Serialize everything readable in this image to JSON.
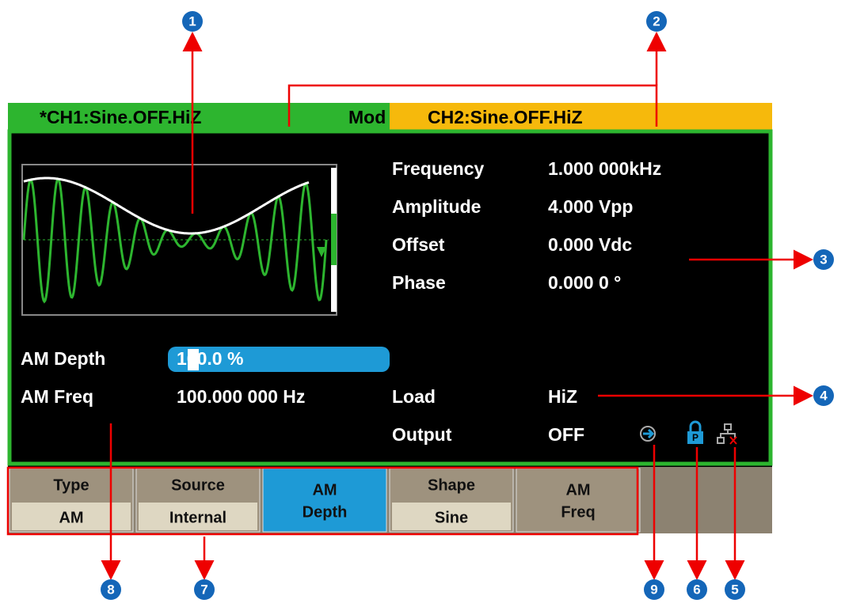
{
  "tabs": {
    "ch1": "*CH1:Sine.OFF.HiZ",
    "mod": "Mod",
    "ch2": "CH2:Sine.OFF.HiZ"
  },
  "params": [
    {
      "label": "Frequency",
      "value": "1.000 000kHz"
    },
    {
      "label": "Amplitude",
      "value": "4.000 Vpp"
    },
    {
      "label": "Offset",
      "value": "0.000 Vdc"
    },
    {
      "label": "Phase",
      "value": "0.000 0 °"
    }
  ],
  "modulation": [
    {
      "label": "AM Depth",
      "value": "100.0 %"
    },
    {
      "label": "AM Freq",
      "value": "100.000 000 Hz"
    }
  ],
  "output": [
    {
      "label": "Load",
      "value": "HiZ"
    },
    {
      "label": "Output",
      "value": "OFF"
    }
  ],
  "softkeys": [
    {
      "top": "Type",
      "bottom": "AM"
    },
    {
      "top": "Source",
      "bottom": "Internal"
    },
    {
      "top": "AM",
      "bottom": "Depth"
    },
    {
      "top": "Shape",
      "bottom": "Sine"
    },
    {
      "top": "AM",
      "bottom": "Freq"
    }
  ],
  "callouts": [
    "1",
    "2",
    "3",
    "4",
    "5",
    "6",
    "7",
    "8",
    "9"
  ]
}
